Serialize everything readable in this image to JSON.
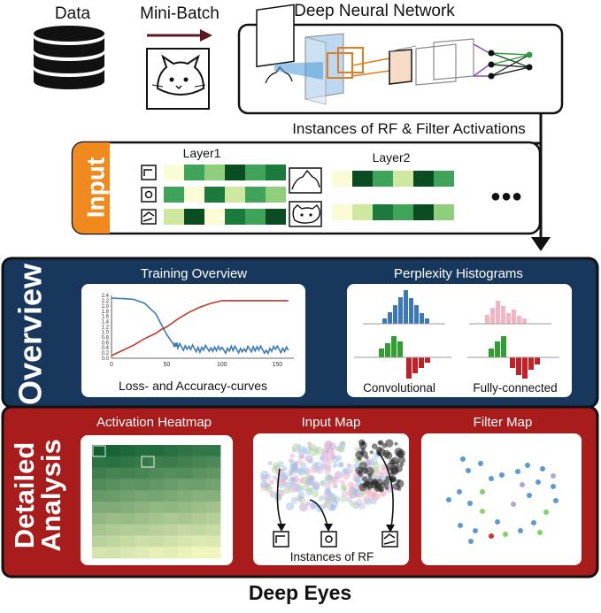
{
  "top": {
    "data_label": "Data",
    "minibatch_label": "Mini-Batch",
    "dnn_title": "Deep Neural Network",
    "rf_caption": "Instances of RF & Filter Activations"
  },
  "input_panel": {
    "tab_label": "Input",
    "layer1_label": "Layer1",
    "layer2_label": "Layer2",
    "ellipsis": "●●●"
  },
  "overview": {
    "side_label": "Overview",
    "training": {
      "title": "Training Overview",
      "caption": "Loss- and Accuracy-curves",
      "y_ticks": [
        "2.4",
        "2.2",
        "2.0",
        "1.8",
        "1.6",
        "1.4",
        "1.2",
        "1.0",
        "0.8",
        "0.6",
        "0.4",
        "0.2",
        "0.0"
      ],
      "x_ticks": [
        "0",
        "50",
        "100",
        "150"
      ]
    },
    "perplexity": {
      "title": "Perplexity Histograms",
      "conv_label": "Convolutional",
      "fc_label": "Fully-connected"
    }
  },
  "detailed": {
    "side_label_line1": "Detailed",
    "side_label_line2": "Analysis",
    "heatmap_title": "Activation Heatmap",
    "inputmap_title": "Input Map",
    "filtermap_title": "Filter Map",
    "rf_instances": "Instances of RF"
  },
  "footer": {
    "title": "Deep Eyes"
  },
  "colors": {
    "orange": "#f0891e",
    "navy": "#17375c",
    "crimson": "#a81c1c",
    "loss_blue": "#3a7ab8",
    "acc_red": "#c0392b"
  },
  "chart_data": {
    "type": "line",
    "x": [
      0,
      10,
      20,
      30,
      40,
      45,
      50,
      55,
      60,
      70,
      80,
      90,
      100,
      110,
      120,
      130,
      140,
      150,
      160
    ],
    "series": [
      {
        "values": [
          2.3,
          2.28,
          2.25,
          2.1,
          1.7,
          1.3,
          0.9,
          0.6,
          0.45,
          0.4,
          0.35,
          0.4,
          0.3,
          0.35,
          0.3,
          0.4,
          0.3,
          0.35,
          0.3
        ]
      },
      {
        "values": [
          0.1,
          0.3,
          0.5,
          0.75,
          0.95,
          1.1,
          1.2,
          1.35,
          1.5,
          1.75,
          1.95,
          2.1,
          2.2,
          2.2,
          2.2,
          2.2,
          2.2,
          2.2,
          2.2
        ]
      }
    ],
    "xlim": [
      0,
      165
    ],
    "ylim": [
      0,
      2.4
    ]
  }
}
